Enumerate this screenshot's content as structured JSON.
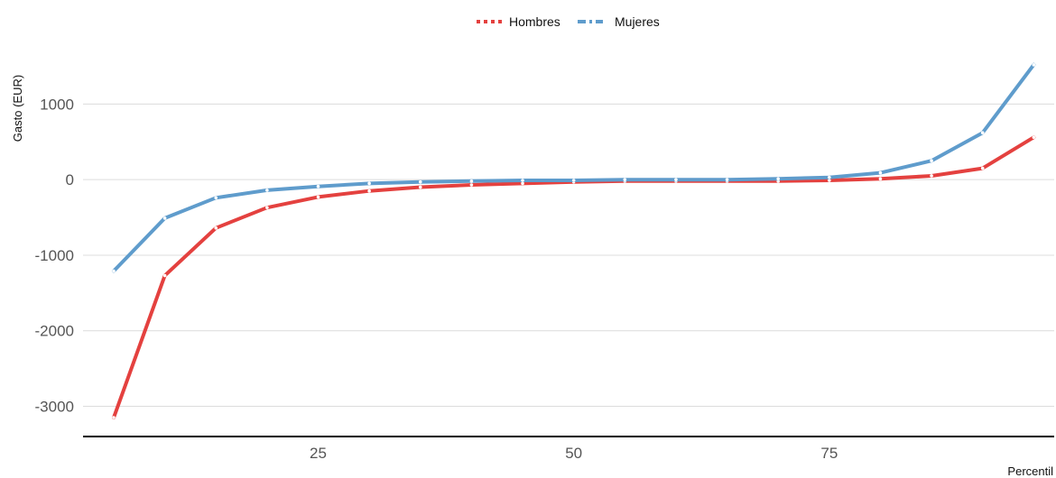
{
  "chart_data": {
    "type": "line",
    "title": "",
    "xlabel": "Percentil",
    "ylabel": "Gasto (EUR)",
    "xlim": [
      2,
      97
    ],
    "ylim": [
      -3400,
      1900
    ],
    "x_ticks": [
      25,
      50,
      75
    ],
    "y_ticks": [
      -3000,
      -2000,
      -1000,
      0,
      1000
    ],
    "grid": "horizontal",
    "legend_position": "top",
    "x": [
      5,
      10,
      15,
      20,
      25,
      30,
      35,
      40,
      45,
      50,
      55,
      60,
      65,
      70,
      75,
      80,
      85,
      90,
      95
    ],
    "series": [
      {
        "name": "Hombres",
        "color": "#e4413f",
        "values": [
          -3150,
          -1270,
          -640,
          -370,
          -230,
          -150,
          -100,
          -70,
          -50,
          -30,
          -20,
          -20,
          -20,
          -20,
          -10,
          10,
          50,
          150,
          560
        ]
      },
      {
        "name": "Mujeres",
        "color": "#5f9ccc",
        "values": [
          -1210,
          -510,
          -240,
          -140,
          -90,
          -50,
          -30,
          -20,
          -10,
          -10,
          0,
          0,
          0,
          10,
          30,
          90,
          250,
          620,
          1520
        ]
      }
    ]
  }
}
